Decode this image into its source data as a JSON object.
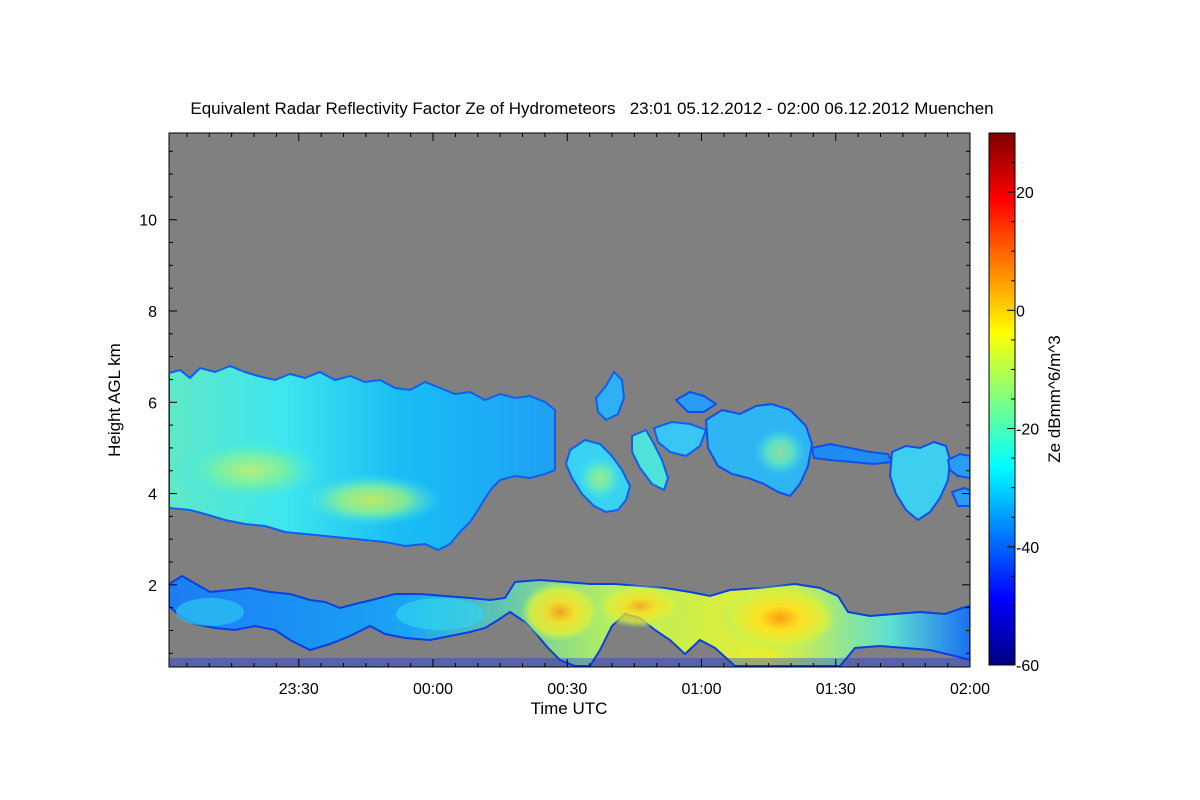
{
  "chart_data": {
    "type": "heatmap",
    "title": "Equivalent Radar Reflectivity Factor Ze of Hydrometeors   23:01 05.12.2012 - 02:00 06.12.2012 Muenchen",
    "xlabel": "Time UTC",
    "ylabel": "Height AGL km",
    "colorbar_label": "Ze dBmm^6/m^3",
    "x_range": [
      "23:01",
      "02:00"
    ],
    "x_ticks": [
      "23:30",
      "00:00",
      "00:30",
      "01:00",
      "01:30",
      "02:00"
    ],
    "ylim": [
      0.2,
      11.9
    ],
    "y_ticks": [
      "2",
      "4",
      "6",
      "8",
      "10"
    ],
    "colorbar_range": [
      -60,
      30
    ],
    "colorbar_ticks": [
      "-60",
      "-40",
      "-20",
      "0",
      "20"
    ],
    "no_data_color": "#808080",
    "colormap": [
      "#00007f",
      "#0000ff",
      "#007fff",
      "#00ffff",
      "#7fff7f",
      "#ffff00",
      "#ff7f00",
      "#ff0000",
      "#7f0000"
    ],
    "features": {
      "upper_cloud_layer": {
        "time_start": "23:01",
        "time_end": "02:00",
        "base_km": 3.0,
        "top_km": 6.8,
        "typical_ze_dbz": [
          -35,
          -18
        ]
      },
      "lower_cloud_layer": {
        "time_start": "23:01",
        "time_end": "02:00",
        "base_km": 0.2,
        "top_km": 2.1,
        "typical_ze_dbz": [
          -40,
          -5
        ]
      },
      "strongest_echo": {
        "time": "01:20",
        "height_km": 1.3,
        "ze_dbz": 0
      }
    }
  }
}
